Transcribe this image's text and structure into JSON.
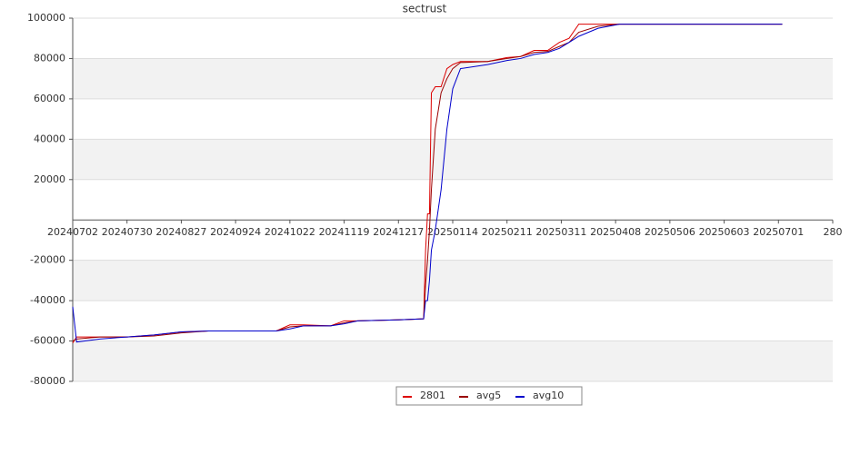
{
  "chart_data": {
    "type": "line",
    "title": "sectrust",
    "x": [
      "20240702",
      "20240704",
      "20240716",
      "20240730",
      "20240813",
      "20240827",
      "20240910",
      "20241008",
      "20241015",
      "20241022",
      "20241029",
      "20241112",
      "20241119",
      "20241126",
      "20241217",
      "20241230",
      "20241231",
      "20250101",
      "20250102",
      "20250103",
      "20250105",
      "20250108",
      "20250111",
      "20250114",
      "20250118",
      "20250201",
      "20250211",
      "20250218",
      "20250225",
      "20250304",
      "20250310",
      "20250315",
      "20250320",
      "20250330",
      "20250410",
      "20250703"
    ],
    "series": [
      {
        "name": "2801",
        "color": "#dd0000",
        "values": [
          -61000,
          -58000,
          -58000,
          -58000,
          -57000,
          -55500,
          -55000,
          -55000,
          -55000,
          -52000,
          -52000,
          -52500,
          -50000,
          -50000,
          -49500,
          -49000,
          -15000,
          3000,
          3000,
          63000,
          66000,
          66000,
          75000,
          77000,
          78500,
          78500,
          80500,
          81000,
          84000,
          84000,
          88000,
          90000,
          97000,
          97000,
          97000,
          97000
        ]
      },
      {
        "name": "avg5",
        "color": "#990000",
        "values": [
          -60000,
          -59000,
          -58000,
          -58000,
          -57500,
          -56000,
          -55000,
          -55000,
          -55000,
          -53000,
          -52500,
          -52500,
          -51000,
          -50000,
          -49500,
          -49000,
          -32000,
          -20000,
          -5000,
          15000,
          45000,
          63000,
          70000,
          75000,
          78000,
          78500,
          80000,
          81000,
          83000,
          83500,
          86000,
          88000,
          93000,
          96000,
          97000,
          97000
        ]
      },
      {
        "name": "avg10",
        "color": "#0000cc",
        "values": [
          -43000,
          -60500,
          -59000,
          -58000,
          -57000,
          -55500,
          -55000,
          -55000,
          -55000,
          -54000,
          -52500,
          -52500,
          -51500,
          -50000,
          -49500,
          -49000,
          -40000,
          -40000,
          -30000,
          -15000,
          -5000,
          15000,
          45000,
          65000,
          75000,
          77000,
          79000,
          80000,
          82000,
          83000,
          85000,
          88000,
          91000,
          95000,
          97000,
          97000
        ]
      }
    ],
    "xlim": [
      "20240702",
      "20250729"
    ],
    "xticks": [
      "20240702",
      "20240730",
      "20240827",
      "20240924",
      "20241022",
      "20241119",
      "20241217",
      "20250114",
      "20250211",
      "20250311",
      "20250408",
      "20250506",
      "20250603",
      "20250701",
      {
        "value": "20250729",
        "label": "280"
      }
    ],
    "ylim": [
      -80000,
      100000
    ],
    "yticks": [
      -80000,
      -60000,
      -40000,
      -20000,
      20000,
      40000,
      60000,
      80000,
      100000
    ],
    "grid": true,
    "legend": "bottom"
  }
}
